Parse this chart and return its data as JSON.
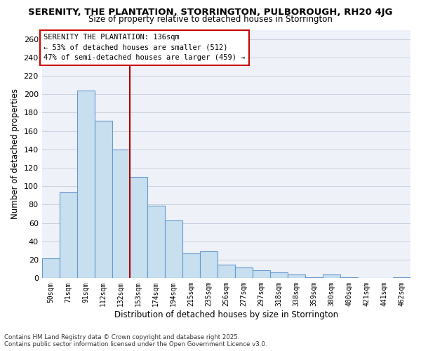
{
  "title_line1": "SERENITY, THE PLANTATION, STORRINGTON, PULBOROUGH, RH20 4JG",
  "title_line2": "Size of property relative to detached houses in Storrington",
  "xlabel": "Distribution of detached houses by size in Storrington",
  "ylabel": "Number of detached properties",
  "bar_labels": [
    "50sqm",
    "71sqm",
    "91sqm",
    "112sqm",
    "132sqm",
    "153sqm",
    "174sqm",
    "194sqm",
    "215sqm",
    "235sqm",
    "256sqm",
    "277sqm",
    "297sqm",
    "318sqm",
    "338sqm",
    "359sqm",
    "380sqm",
    "400sqm",
    "421sqm",
    "441sqm",
    "462sqm"
  ],
  "bar_values": [
    22,
    93,
    204,
    171,
    140,
    110,
    79,
    63,
    27,
    29,
    15,
    12,
    9,
    6,
    4,
    1,
    4,
    1,
    0,
    0,
    1
  ],
  "bar_fill_color": "#c8dff0",
  "bar_edge_color": "#6699cc",
  "vline_color": "#aa0000",
  "vline_x": 4.5,
  "ylim": [
    0,
    270
  ],
  "yticks": [
    0,
    20,
    40,
    60,
    80,
    100,
    120,
    140,
    160,
    180,
    200,
    220,
    240,
    260
  ],
  "annotation_title": "SERENITY THE PLANTATION: 136sqm",
  "annotation_line1": "← 53% of detached houses are smaller (512)",
  "annotation_line2": "47% of semi-detached houses are larger (459) →",
  "footnote1": "Contains HM Land Registry data © Crown copyright and database right 2025.",
  "footnote2": "Contains public sector information licensed under the Open Government Licence v3.0.",
  "bg_color": "#ffffff",
  "plot_bg_color": "#eef2f8",
  "grid_color": "#c8d0e0",
  "annotation_box_facecolor": "#ffffff",
  "annotation_box_edgecolor": "#cc0000",
  "title_fontsize": 9.5,
  "subtitle_fontsize": 8.5
}
